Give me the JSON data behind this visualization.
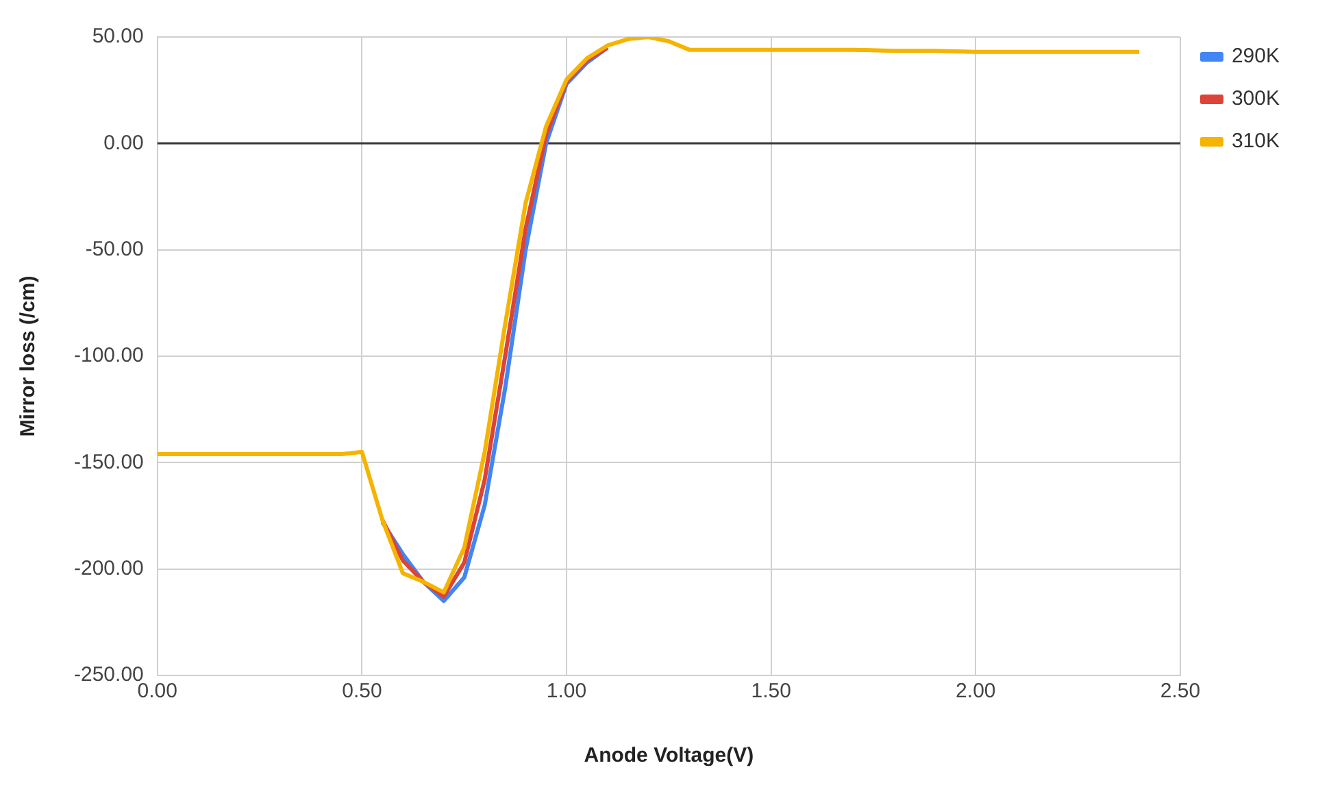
{
  "chart_data": {
    "type": "line",
    "xlabel": "Anode Voltage(V)",
    "ylabel": "Mirror loss (/cm)",
    "x": [
      0,
      0.1,
      0.2,
      0.3,
      0.4,
      0.45,
      0.5,
      0.55,
      0.6,
      0.65,
      0.7,
      0.75,
      0.8,
      0.85,
      0.9,
      0.95,
      1.0,
      1.05,
      1.1,
      1.15,
      1.2,
      1.25,
      1.3,
      1.4,
      1.5,
      1.6,
      1.7,
      1.8,
      1.9,
      2.0,
      2.1,
      2.2,
      2.3,
      2.4
    ],
    "series": [
      {
        "name": "290K",
        "color": "#4285f4",
        "values": [
          null,
          null,
          null,
          null,
          null,
          null,
          null,
          -178,
          -193,
          -206,
          -215,
          -204,
          -170,
          -115,
          -50,
          0,
          28,
          38,
          45,
          null,
          null,
          null,
          null,
          null,
          null,
          null,
          null,
          null,
          null,
          null,
          null,
          null,
          null,
          null
        ]
      },
      {
        "name": "300K",
        "color": "#db4437",
        "values": [
          null,
          null,
          null,
          null,
          null,
          null,
          null,
          -177,
          -196,
          -206,
          -213,
          -197,
          -158,
          -100,
          -40,
          4,
          29,
          39,
          45,
          null,
          null,
          null,
          null,
          null,
          null,
          null,
          null,
          null,
          null,
          null,
          null,
          null,
          null,
          null
        ]
      },
      {
        "name": "310K",
        "color": "#f4b400",
        "values": [
          -146,
          -146,
          -146,
          -146,
          -146,
          -146,
          -145,
          -177,
          -202,
          -206,
          -211,
          -190,
          -145,
          -85,
          -28,
          8,
          30,
          40,
          46,
          49,
          50,
          48,
          44,
          44,
          44,
          44,
          44,
          43.5,
          43.5,
          43,
          43,
          43,
          43,
          43
        ]
      }
    ],
    "xlim": [
      0,
      2.5
    ],
    "xticks": [
      {
        "value": 0,
        "label": "0.00"
      },
      {
        "value": 0.5,
        "label": "0.50"
      },
      {
        "value": 1,
        "label": "1.00"
      },
      {
        "value": 1.5,
        "label": "1.50"
      },
      {
        "value": 2,
        "label": "2.00"
      },
      {
        "value": 2.5,
        "label": "2.50"
      }
    ],
    "ylim": [
      -250,
      50
    ],
    "yticks": [
      {
        "value": -250,
        "label": "-250.00"
      },
      {
        "value": -200,
        "label": "-200.00"
      },
      {
        "value": -150,
        "label": "-150.00"
      },
      {
        "value": -100,
        "label": "-100.00"
      },
      {
        "value": -50,
        "label": "-50.00"
      },
      {
        "value": 0,
        "label": "0.00"
      },
      {
        "value": 50,
        "label": "50.00"
      }
    ],
    "ref_lines": [
      {
        "axis": "y",
        "value": 0,
        "color": "#333333"
      }
    ],
    "grid": true,
    "legend": "top right",
    "marker": "none",
    "line_style": "solid"
  }
}
